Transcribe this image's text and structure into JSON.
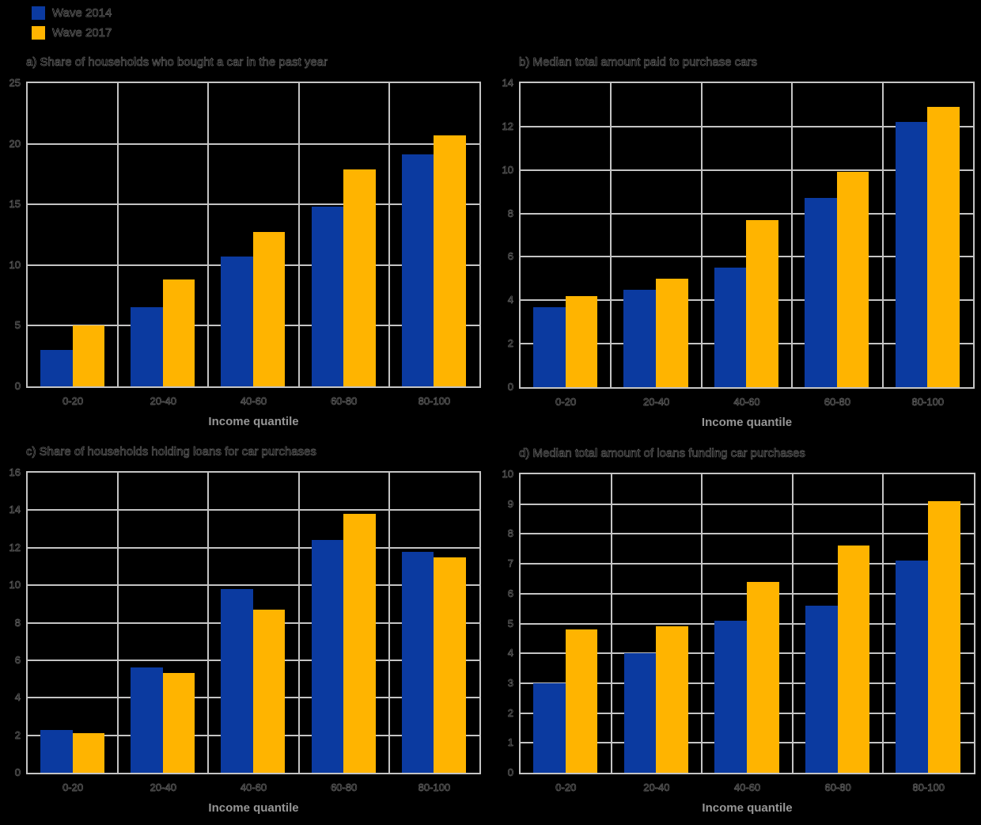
{
  "legend": {
    "items": [
      {
        "label": "Wave 2014"
      },
      {
        "label": "Wave 2017"
      }
    ]
  },
  "colors": {
    "series": [
      "#0b3aa0",
      "#ffb400"
    ],
    "gridline": "#c4c4c4",
    "tick_text": "#000000",
    "axis_title": "#969696",
    "page_background": "#000000"
  },
  "chart_data": [
    {
      "panel": "a",
      "type": "bar",
      "title": "a) Share of households who bought a car in the past year",
      "xlabel": "Income quantile",
      "categories": [
        "0-20",
        "20-40",
        "40-60",
        "60-80",
        "80-100"
      ],
      "ylim": [
        0,
        25
      ],
      "yticks": [
        0,
        5,
        10,
        15,
        20,
        25
      ],
      "grid": true,
      "legend_position": "top-left-of-figure",
      "series": [
        {
          "name": "Wave 2014",
          "values": [
            3.0,
            6.5,
            10.7,
            14.8,
            19.1
          ]
        },
        {
          "name": "Wave 2017",
          "values": [
            5.0,
            8.8,
            12.7,
            17.9,
            20.7
          ]
        }
      ]
    },
    {
      "panel": "b",
      "type": "bar",
      "title": "b) Median total amount paid to purchase cars",
      "xlabel": "Income quantile",
      "categories": [
        "0-20",
        "20-40",
        "40-60",
        "60-80",
        "80-100"
      ],
      "ylim": [
        0,
        14
      ],
      "yticks": [
        0,
        2,
        4,
        6,
        8,
        10,
        12,
        14
      ],
      "grid": true,
      "series": [
        {
          "name": "Wave 2014",
          "values": [
            3.7,
            4.5,
            5.5,
            8.7,
            12.2
          ]
        },
        {
          "name": "Wave 2017",
          "values": [
            4.2,
            5.0,
            7.7,
            9.9,
            12.9
          ]
        }
      ]
    },
    {
      "panel": "c",
      "type": "bar",
      "title": "c) Share of households holding loans for car purchases",
      "xlabel": "Income quantile",
      "categories": [
        "0-20",
        "20-40",
        "40-60",
        "60-80",
        "80-100"
      ],
      "ylim": [
        0,
        16
      ],
      "yticks": [
        0,
        2,
        4,
        6,
        8,
        10,
        12,
        14,
        16
      ],
      "grid": true,
      "series": [
        {
          "name": "Wave 2014",
          "values": [
            2.3,
            5.6,
            9.8,
            12.4,
            11.8
          ]
        },
        {
          "name": "Wave 2017",
          "values": [
            2.1,
            5.3,
            8.7,
            13.8,
            11.5
          ]
        }
      ]
    },
    {
      "panel": "d",
      "type": "bar",
      "title": "d) Median total amount of loans funding car purchases",
      "xlabel": "Income quantile",
      "categories": [
        "0-20",
        "20-40",
        "40-60",
        "60-80",
        "80-100"
      ],
      "ylim": [
        0,
        10
      ],
      "yticks": [
        0,
        1,
        2,
        3,
        4,
        5,
        6,
        7,
        8,
        9,
        10
      ],
      "grid": true,
      "series": [
        {
          "name": "Wave 2014",
          "values": [
            3.0,
            4.0,
            5.1,
            5.6,
            7.1
          ]
        },
        {
          "name": "Wave 2017",
          "values": [
            4.8,
            4.9,
            6.4,
            7.6,
            9.1
          ]
        }
      ]
    }
  ]
}
